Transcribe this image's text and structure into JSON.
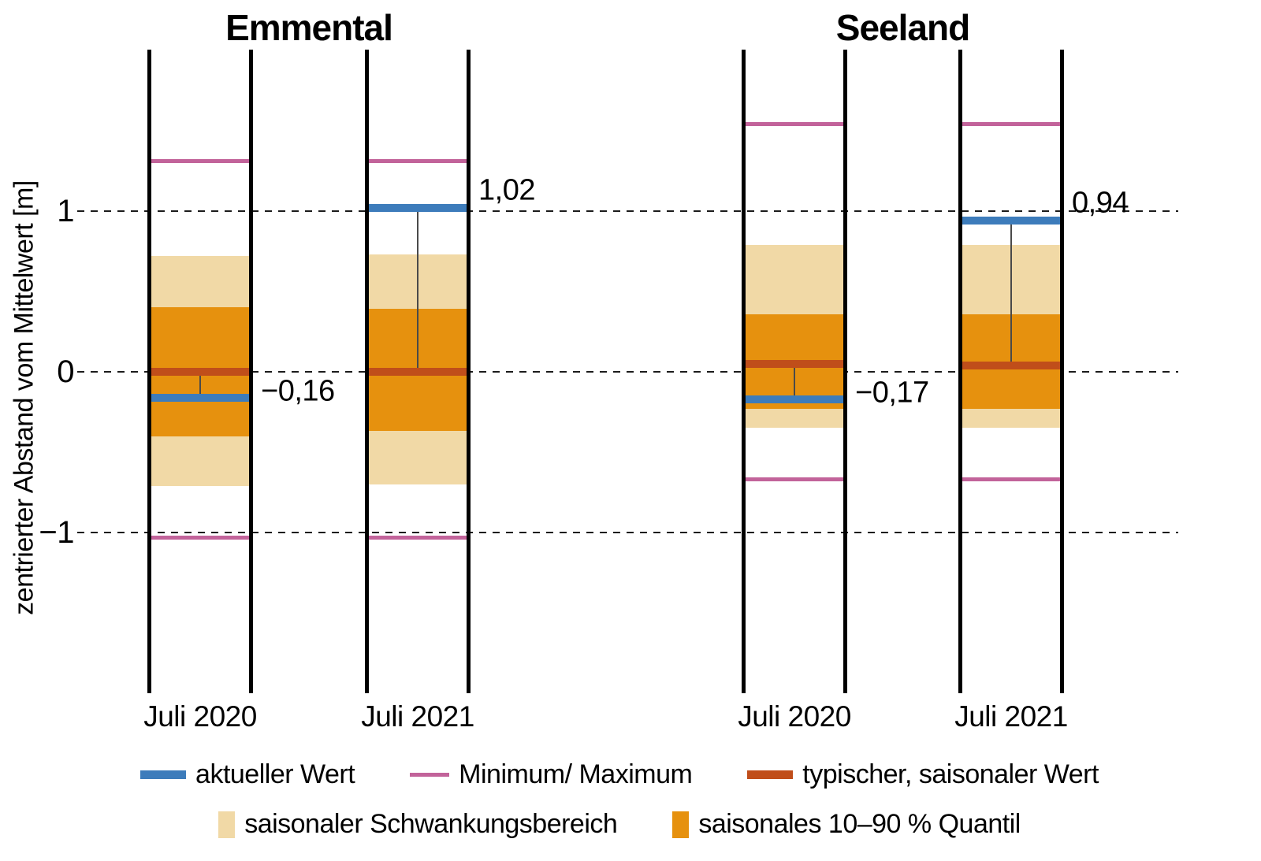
{
  "chart_data": {
    "type": "seasonal-range-column",
    "unit": "m",
    "ylabel": "zentrierter Abstand vom Mittelwert [m]",
    "ylim": [
      -2,
      2
    ],
    "grid": "dashed horizontal lines at y = -1, 0, 1",
    "yticks": [
      {
        "value": 1,
        "label": "1"
      },
      {
        "value": 0,
        "label": "0"
      },
      {
        "value": -1,
        "label": "−1"
      }
    ],
    "panels": [
      {
        "title": "Emmental",
        "columns": [
          {
            "x_label": "Juli 2020",
            "current_value": -0.16,
            "current_value_label": "−0,16",
            "maximum": 1.31,
            "minimum": -1.03,
            "seasonal_range": [
              -0.71,
              0.72
            ],
            "quantile_10_90": [
              -0.4,
              0.4
            ],
            "typical_seasonal_value": 0.0
          },
          {
            "x_label": "Juli 2021",
            "current_value": 1.02,
            "current_value_label": "1,02",
            "maximum": 1.31,
            "minimum": -1.03,
            "seasonal_range": [
              -0.7,
              0.73
            ],
            "quantile_10_90": [
              -0.37,
              0.39
            ],
            "typical_seasonal_value": 0.0
          }
        ]
      },
      {
        "title": "Seeland",
        "columns": [
          {
            "x_label": "Juli 2020",
            "current_value": -0.17,
            "current_value_label": "−0,17",
            "maximum": 1.54,
            "minimum": -0.67,
            "seasonal_range": [
              -0.35,
              0.79
            ],
            "quantile_10_90": [
              -0.23,
              0.36
            ],
            "typical_seasonal_value": 0.05
          },
          {
            "x_label": "Juli 2021",
            "current_value": 0.94,
            "current_value_label": "0,94",
            "maximum": 1.54,
            "minimum": -0.67,
            "seasonal_range": [
              -0.35,
              0.79
            ],
            "quantile_10_90": [
              -0.23,
              0.36
            ],
            "typical_seasonal_value": 0.04
          }
        ]
      }
    ],
    "legend": {
      "rows": [
        [
          {
            "swatch": "line-thick",
            "color": "current",
            "label": "aktueller Wert"
          },
          {
            "swatch": "line-thin",
            "color": "minmax",
            "label": "Minimum/ Maximum"
          },
          {
            "swatch": "line-thick",
            "color": "typical",
            "label": "typischer, saisonaler Wert"
          }
        ],
        [
          {
            "swatch": "rect",
            "color": "range",
            "label": "saisonaler Schwankungsbereich"
          },
          {
            "swatch": "rect",
            "color": "quantile",
            "label": "saisonales 10–90 % Quantil"
          }
        ]
      ]
    },
    "colors": {
      "current": "#3d7cbb",
      "minmax": "#c2639a",
      "typical": "#c04e1a",
      "range": "#f1d9a6",
      "quantile": "#e6910e",
      "axis": "#000000",
      "gridline": "#1b1b1b"
    }
  }
}
